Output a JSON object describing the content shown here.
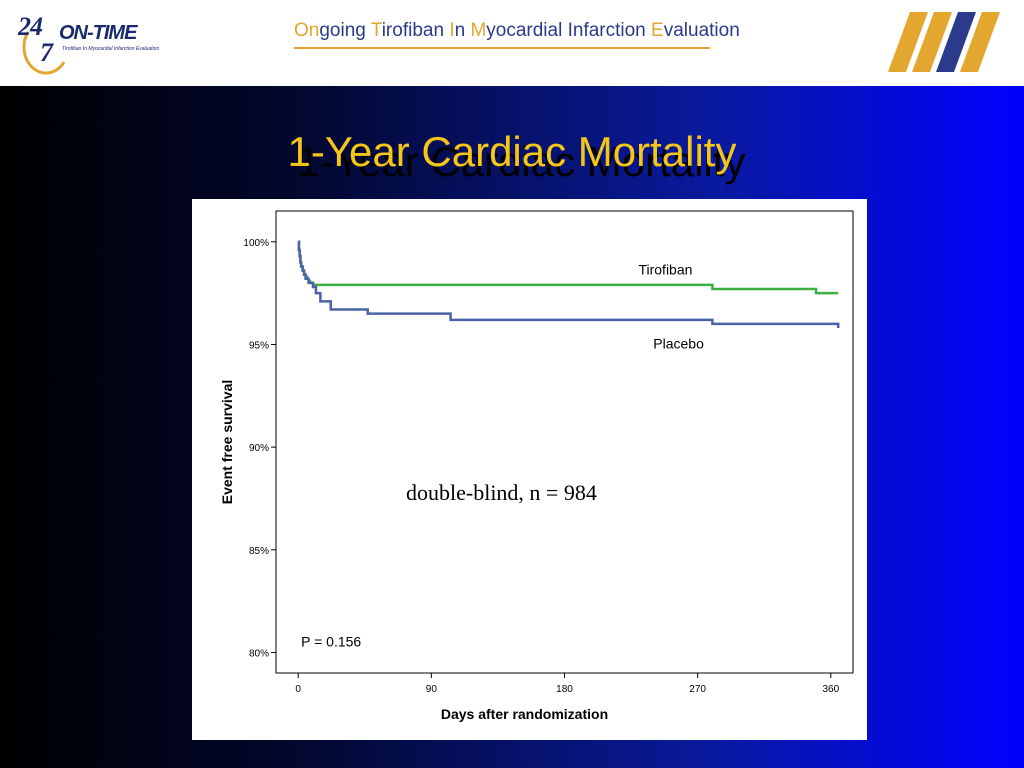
{
  "header": {
    "logo_number_top": "24",
    "logo_number_bottom": "7",
    "logo_name": "ON-TIME",
    "logo_subtitle": "Tirofiban In Myocardial Infarction Evaluation",
    "title_parts": [
      {
        "text": "On",
        "accent": true
      },
      {
        "text": "going ",
        "accent": false
      },
      {
        "text": "T",
        "accent": true
      },
      {
        "text": "irofiban ",
        "accent": false
      },
      {
        "text": "I",
        "accent": true
      },
      {
        "text": "n ",
        "accent": false
      },
      {
        "text": "M",
        "accent": true
      },
      {
        "text": "yocardial Infarction ",
        "accent": false
      },
      {
        "text": "E",
        "accent": true
      },
      {
        "text": "valuation",
        "accent": false
      }
    ]
  },
  "slide": {
    "title": "1-Year Cardiac Mortality",
    "annotation": "double-blind, n = 984"
  },
  "colors": {
    "title_gold": "#f5c518",
    "brand_navy": "#2b3a8a",
    "brand_gold": "#e3a72f",
    "tirofiban_green": "#3cb043",
    "placebo_blue": "#4a63a8"
  },
  "chart_data": {
    "type": "line",
    "step": true,
    "xlabel": "Days after randomization",
    "ylabel": "Event free survival",
    "xlim": [
      -15,
      375
    ],
    "ylim": [
      79,
      101.5
    ],
    "xticks": [
      0,
      90,
      180,
      270,
      360
    ],
    "yticks": [
      80,
      85,
      90,
      95,
      100
    ],
    "ytick_labels": [
      "80%",
      "85%",
      "90%",
      "95%",
      "100%"
    ],
    "p_value_text": "P = 0.156",
    "series": [
      {
        "name": "Tirofiban",
        "color": "#3cb043",
        "x": [
          0,
          0.5,
          1,
          1.5,
          2,
          3,
          4,
          5,
          6,
          7,
          8,
          10,
          280,
          350,
          365
        ],
        "y": [
          100,
          99.6,
          99.3,
          99.0,
          98.8,
          98.6,
          98.4,
          98.3,
          98.2,
          98.1,
          98.0,
          97.9,
          97.7,
          97.5,
          97.5
        ],
        "label_x": 230,
        "label_y": 98.4
      },
      {
        "name": "Placebo",
        "color": "#4a63a8",
        "x": [
          0,
          0.5,
          1,
          1.5,
          2,
          3,
          4,
          5,
          7,
          10,
          12,
          15,
          22,
          47,
          103,
          280,
          365
        ],
        "y": [
          100,
          99.6,
          99.3,
          99.0,
          98.8,
          98.6,
          98.4,
          98.2,
          98.0,
          97.8,
          97.5,
          97.1,
          96.7,
          96.5,
          96.2,
          96.0,
          95.8
        ],
        "label_x": 240,
        "label_y": 94.8
      }
    ]
  }
}
